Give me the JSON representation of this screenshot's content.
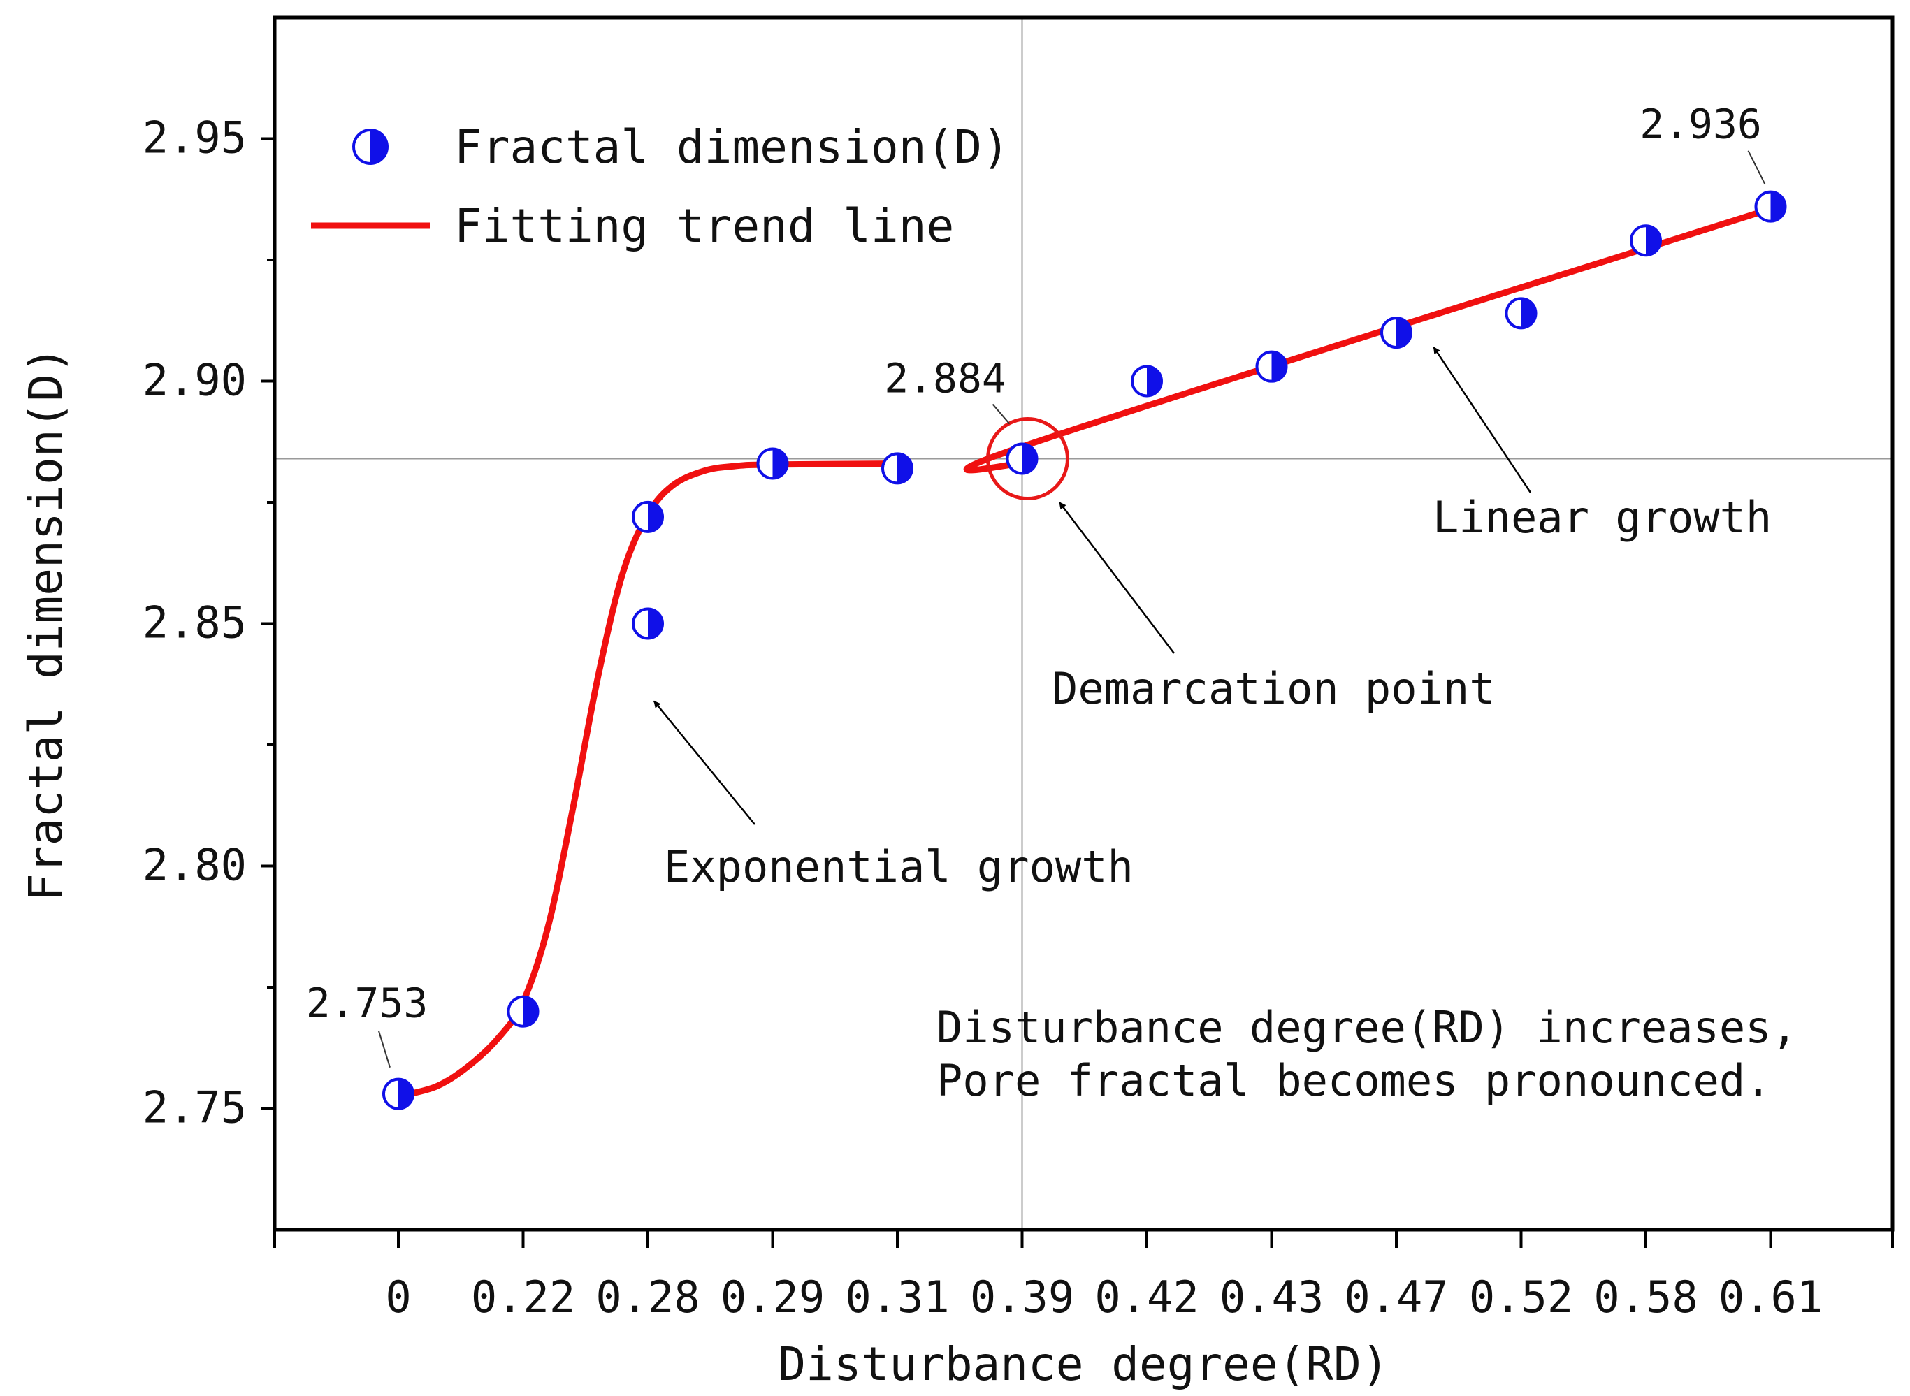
{
  "chart_data": {
    "type": "scatter",
    "xlabel": "Disturbance degree(RD)",
    "ylabel": "Fractal dimension(D)",
    "ylim": [
      2.725,
      2.975
    ],
    "yticks": [
      2.75,
      2.8,
      2.85,
      2.9,
      2.95
    ],
    "ytick_labels": [
      "2.75",
      "2.80",
      "2.85",
      "2.90",
      "2.95"
    ],
    "categories": [
      "0",
      "0.22",
      "0.28",
      "0.29",
      "0.31",
      "0.39",
      "0.42",
      "0.43",
      "0.47",
      "0.52",
      "0.58",
      "0.61"
    ],
    "series": [
      {
        "name": "Fractal dimension(D)",
        "kind": "scatter",
        "points": [
          {
            "x": 0,
            "y": 2.753
          },
          {
            "x": 1,
            "y": 2.77
          },
          {
            "x": 2,
            "y": 2.85
          },
          {
            "x": 2,
            "y": 2.872
          },
          {
            "x": 3,
            "y": 2.883
          },
          {
            "x": 4,
            "y": 2.882
          },
          {
            "x": 5,
            "y": 2.884
          },
          {
            "x": 6,
            "y": 2.9
          },
          {
            "x": 7,
            "y": 2.903
          },
          {
            "x": 8,
            "y": 2.91
          },
          {
            "x": 9,
            "y": 2.914
          },
          {
            "x": 10,
            "y": 2.929
          },
          {
            "x": 11,
            "y": 2.936
          }
        ]
      },
      {
        "name": "Fitting trend line",
        "kind": "line",
        "points": [
          {
            "x": 0,
            "y": 2.7525
          },
          {
            "x": 0.3,
            "y": 2.7545
          },
          {
            "x": 0.55,
            "y": 2.7585
          },
          {
            "x": 0.8,
            "y": 2.7645
          },
          {
            "x": 1.0,
            "y": 2.772
          },
          {
            "x": 1.2,
            "y": 2.7875
          },
          {
            "x": 1.4,
            "y": 2.812
          },
          {
            "x": 1.6,
            "y": 2.839
          },
          {
            "x": 1.8,
            "y": 2.8605
          },
          {
            "x": 2.0,
            "y": 2.8725
          },
          {
            "x": 2.2,
            "y": 2.8785
          },
          {
            "x": 2.45,
            "y": 2.8815
          },
          {
            "x": 2.7,
            "y": 2.8825
          },
          {
            "x": 3.0,
            "y": 2.8828
          },
          {
            "x": 4.0,
            "y": 2.883
          },
          {
            "x": 5.0,
            "y": 2.883
          },
          {
            "x": 5.0,
            "y": 2.8865
          },
          {
            "x": 11.0,
            "y": 2.9355
          }
        ]
      }
    ],
    "legend": {
      "position": "top-left",
      "entries": [
        "Fractal dimension(D)",
        "Fitting trend line"
      ]
    },
    "reference_lines": {
      "x": 5,
      "y": 2.884
    },
    "highlight_circle": {
      "x": 5,
      "y": 2.884
    },
    "data_labels": [
      {
        "text": "2.753",
        "x": 0,
        "y": 2.753
      },
      {
        "text": "2.884",
        "x": 5,
        "y": 2.884
      },
      {
        "text": "2.936",
        "x": 11,
        "y": 2.936
      }
    ],
    "annotations": [
      {
        "text": "Exponential growth",
        "x": 2.1,
        "y": 2.801,
        "arrow_to": {
          "x": 2.05,
          "y": 2.834
        }
      },
      {
        "text": "Demarcation point",
        "x": 5.25,
        "y": 2.837,
        "arrow_to": {
          "x": 5.3,
          "y": 2.875
        }
      },
      {
        "text": "Linear growth",
        "x": 8.3,
        "y": 2.871,
        "arrow_to": {
          "x": 8.3,
          "y": 2.907
        }
      },
      {
        "text": "Disturbance degree(RD) increases,",
        "x": 4.3,
        "y": 2.767
      },
      {
        "text": "Pore fractal becomes pronounced.",
        "x": 4.3,
        "y": 2.756
      }
    ],
    "colors": {
      "marker": "#1010e8",
      "trend_line": "#f01010",
      "highlight": "#e81818",
      "reference_line": "#9a9a9a",
      "axis": "#000000",
      "arrow": "#000000"
    }
  }
}
